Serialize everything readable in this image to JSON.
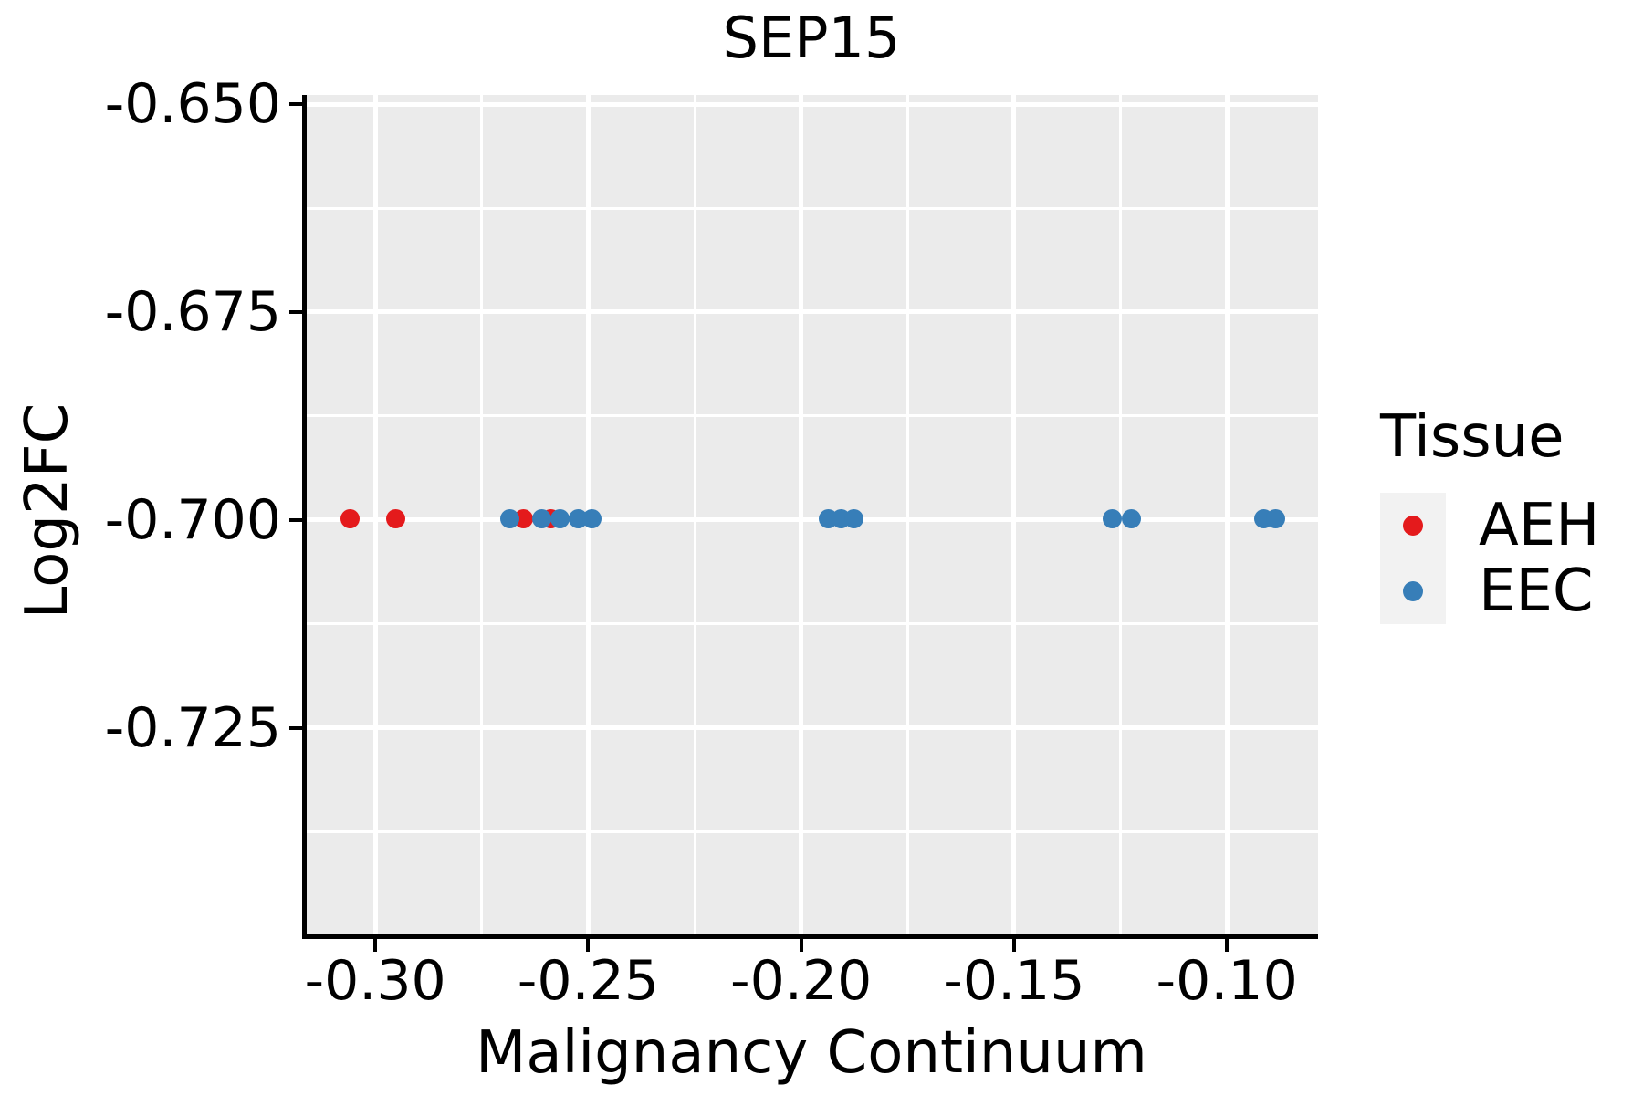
{
  "chart_data": {
    "type": "scatter",
    "title": "SEP15",
    "xlabel": "Malignancy Continuum",
    "ylabel": "Log2FC",
    "xlim": [
      -0.3161,
      -0.0786
    ],
    "ylim": [
      -0.6489,
      -0.7498
    ],
    "x_ticks": [
      -0.3,
      -0.25,
      -0.2,
      -0.15,
      -0.1
    ],
    "x_tick_labels": [
      "-0.30",
      "-0.25",
      "-0.20",
      "-0.15",
      "-0.10"
    ],
    "x_minor_ticks": [
      -0.275,
      -0.225,
      -0.175,
      -0.125
    ],
    "y_ticks": [
      -0.65,
      -0.675,
      -0.7,
      -0.725
    ],
    "y_tick_labels": [
      "-0.650",
      "-0.675",
      "-0.700",
      "-0.725"
    ],
    "y_minor_ticks": [
      -0.6625,
      -0.6875,
      -0.7125,
      -0.7375
    ],
    "grid": true,
    "panel_bg": "#ebebeb",
    "grid_color": "#ffffff",
    "legend_position": "right",
    "series": [
      {
        "name": "AEH",
        "color": "#e41a1c",
        "x": [
          -0.306,
          -0.2953,
          -0.2651,
          -0.2588
        ],
        "y": [
          -0.6998,
          -0.6998,
          -0.6998,
          -0.6998
        ]
      },
      {
        "name": "EEC",
        "color": "#377eb8",
        "x": [
          -0.2683,
          -0.2608,
          -0.2567,
          -0.2524,
          -0.2492,
          -0.1935,
          -0.1907,
          -0.1877,
          -0.127,
          -0.1225,
          -0.0914,
          -0.0886
        ],
        "y": [
          -0.6998,
          -0.6998,
          -0.6998,
          -0.6998,
          -0.6998,
          -0.6998,
          -0.6998,
          -0.6998,
          -0.6998,
          -0.6998,
          -0.6998,
          -0.6998
        ]
      }
    ]
  },
  "legend": {
    "title": "Tissue",
    "items": [
      {
        "label": "AEH",
        "color": "#e41a1c"
      },
      {
        "label": "EEC",
        "color": "#377eb8"
      }
    ]
  }
}
